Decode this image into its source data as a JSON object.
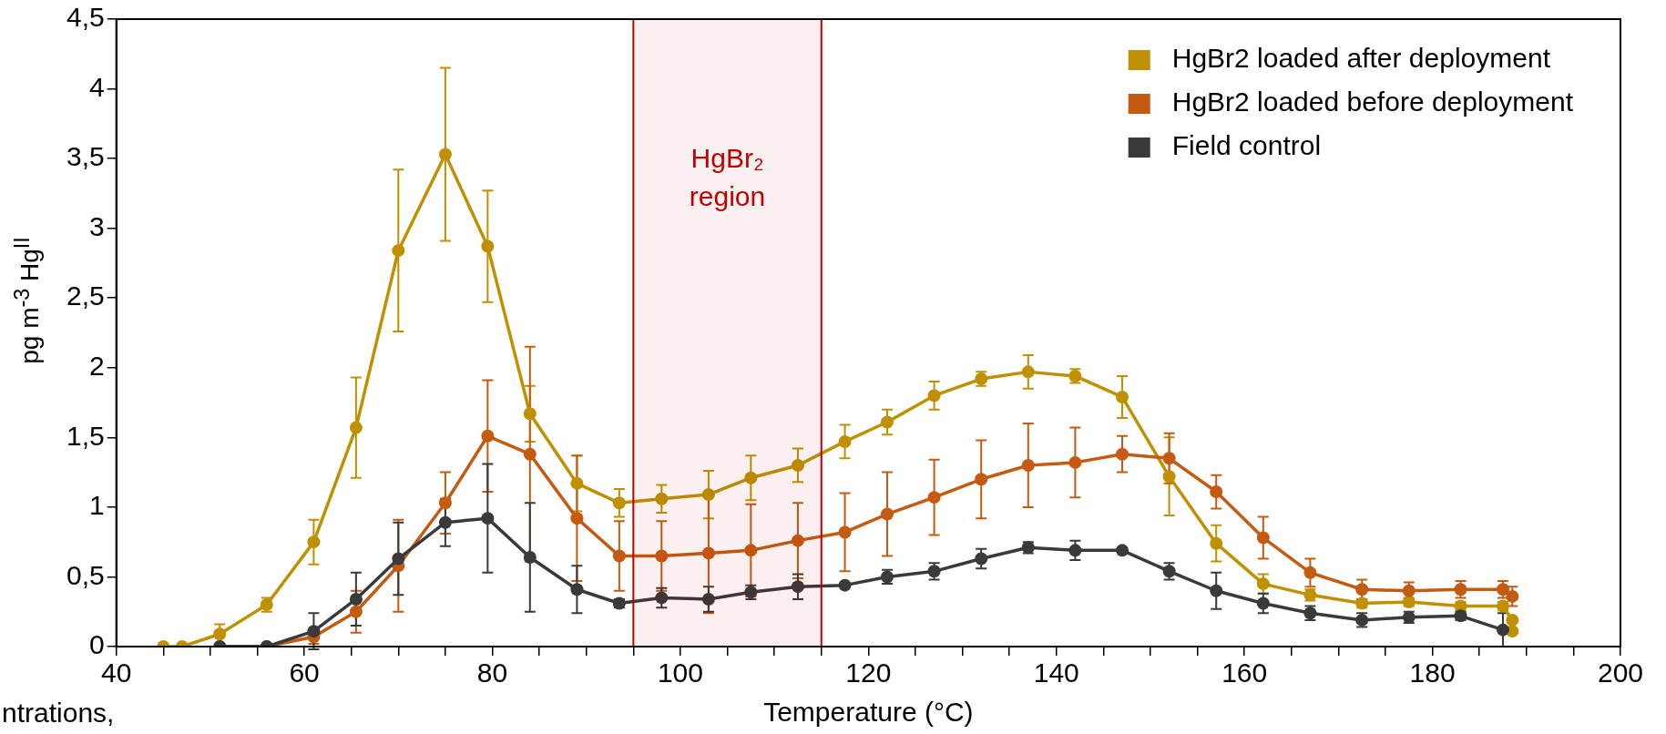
{
  "chart_data": {
    "type": "line",
    "xlabel": "Temperature (°C)",
    "ylabel": "pg m$^{-3}$ Hg$^{II}$",
    "xlim": [
      40,
      200
    ],
    "ylim": [
      0,
      4.5
    ],
    "xticks": [
      40,
      {
        "value": 45,
        "label": null
      },
      {
        "value": 50,
        "label": null
      },
      {
        "value": 55,
        "label": null
      },
      60,
      {
        "value": 65,
        "label": null
      },
      {
        "value": 70,
        "label": null
      },
      {
        "value": 75,
        "label": null
      },
      80,
      {
        "value": 85,
        "label": null
      },
      {
        "value": 90,
        "label": null
      },
      {
        "value": 95,
        "label": null
      },
      100,
      {
        "value": 105,
        "label": null
      },
      {
        "value": 110,
        "label": null
      },
      {
        "value": 115,
        "label": null
      },
      120,
      {
        "value": 125,
        "label": null
      },
      {
        "value": 130,
        "label": null
      },
      {
        "value": 135,
        "label": null
      },
      140,
      {
        "value": 145,
        "label": null
      },
      {
        "value": 150,
        "label": null
      },
      {
        "value": 155,
        "label": null
      },
      160,
      {
        "value": 165,
        "label": null
      },
      {
        "value": 170,
        "label": null
      },
      {
        "value": 175,
        "label": null
      },
      180,
      {
        "value": 185,
        "label": null
      },
      {
        "value": 190,
        "label": null
      },
      {
        "value": 195,
        "label": null
      },
      200
    ],
    "yticks": [
      0,
      {
        "value": 0.5,
        "label": "0,5"
      },
      1,
      {
        "value": 1.5,
        "label": "1,5"
      },
      2,
      {
        "value": 2.5,
        "label": "2,5"
      },
      3,
      {
        "value": 3.5,
        "label": "3,5"
      },
      4,
      {
        "value": 4.5,
        "label": "4,5"
      }
    ],
    "grid": false,
    "legend": "top right",
    "marker": "circle",
    "line_style": "solid",
    "bands": [
      {
        "axis": "x",
        "from": 95,
        "to": 115,
        "label": "HgBr₂ region",
        "color": "#c00000"
      }
    ],
    "annotations": [
      "ntrations,"
    ],
    "series": [
      {
        "name": "HgBr2 loaded after deployment",
        "color": "#bf9000",
        "x": [
          45,
          47,
          51,
          56,
          61,
          65.5,
          70,
          75,
          79.5,
          84,
          89,
          93.5,
          98,
          103,
          107.5,
          112.5,
          117.5,
          122,
          127,
          132,
          137,
          142,
          147,
          152,
          157,
          162,
          167,
          172.5,
          177.5,
          183,
          187.5,
          188.5,
          188.5
        ],
        "values": [
          0,
          0,
          0.09,
          0.3,
          0.75,
          1.57,
          2.84,
          3.53,
          2.87,
          1.67,
          1.17,
          1.03,
          1.06,
          1.09,
          1.21,
          1.3,
          1.47,
          1.61,
          1.8,
          1.92,
          1.97,
          1.94,
          1.79,
          1.22,
          0.74,
          0.45,
          0.37,
          0.31,
          0.32,
          0.29,
          0.29,
          0.19,
          0.11
        ],
        "errors": [
          null,
          null,
          0.07,
          0.05,
          0.16,
          0.36,
          0.58,
          0.62,
          0.4,
          0.2,
          0.2,
          0.1,
          0.1,
          0.17,
          0.16,
          0.12,
          0.12,
          0.09,
          0.1,
          0.05,
          0.12,
          0.05,
          0.15,
          0.28,
          0.13,
          0.07,
          0.04,
          0.03,
          0.03,
          0.03,
          0.03,
          null,
          null
        ]
      },
      {
        "name": "HgBr2 loaded before deployment",
        "color": "#c55a11",
        "x": [
          51,
          56,
          61,
          65.5,
          70,
          75,
          79.5,
          84,
          89,
          93.5,
          98,
          103,
          107.5,
          112.5,
          117.5,
          122,
          127,
          132,
          137,
          142,
          147,
          152,
          157,
          162,
          167,
          172.5,
          177.5,
          183,
          187.5,
          188.5
        ],
        "values": [
          0,
          0,
          0.07,
          0.25,
          0.58,
          1.03,
          1.51,
          1.38,
          0.92,
          0.65,
          0.65,
          0.67,
          0.69,
          0.76,
          0.82,
          0.95,
          1.07,
          1.2,
          1.3,
          1.32,
          1.38,
          1.35,
          1.11,
          0.78,
          0.53,
          0.41,
          0.4,
          0.41,
          0.41,
          0.36
        ],
        "errors": [
          null,
          null,
          0.05,
          0.15,
          0.33,
          0.22,
          0.4,
          0.77,
          0.45,
          0.25,
          0.25,
          0.43,
          0.33,
          0.27,
          0.28,
          0.3,
          0.27,
          0.28,
          0.3,
          0.25,
          0.13,
          0.18,
          0.12,
          0.15,
          0.1,
          0.07,
          0.06,
          0.06,
          0.06,
          0.07
        ]
      },
      {
        "name": "Field control",
        "color": "#3a3a3a",
        "x": [
          51,
          56,
          61,
          65.5,
          70,
          75,
          79.5,
          84,
          89,
          93.5,
          98,
          103,
          107.5,
          112.5,
          117.5,
          122,
          127,
          132,
          137,
          142,
          147,
          152,
          157,
          162,
          167,
          172.5,
          177.5,
          183,
          187.5
        ],
        "values": [
          0,
          0,
          0.11,
          0.34,
          0.63,
          0.89,
          0.92,
          0.64,
          0.41,
          0.31,
          0.35,
          0.34,
          0.39,
          0.43,
          0.44,
          0.5,
          0.54,
          0.63,
          0.71,
          0.69,
          0.69,
          0.54,
          0.4,
          0.31,
          0.24,
          0.19,
          0.21,
          0.22,
          0.12
        ],
        "errors": [
          null,
          null,
          0.13,
          0.19,
          0.26,
          0.17,
          0.39,
          0.39,
          0.17,
          0.03,
          0.07,
          0.09,
          0.05,
          0.09,
          null,
          0.05,
          0.06,
          0.07,
          0.04,
          0.07,
          null,
          0.06,
          0.13,
          0.07,
          0.05,
          0.05,
          0.04,
          0.03,
          0.12
        ]
      }
    ]
  }
}
